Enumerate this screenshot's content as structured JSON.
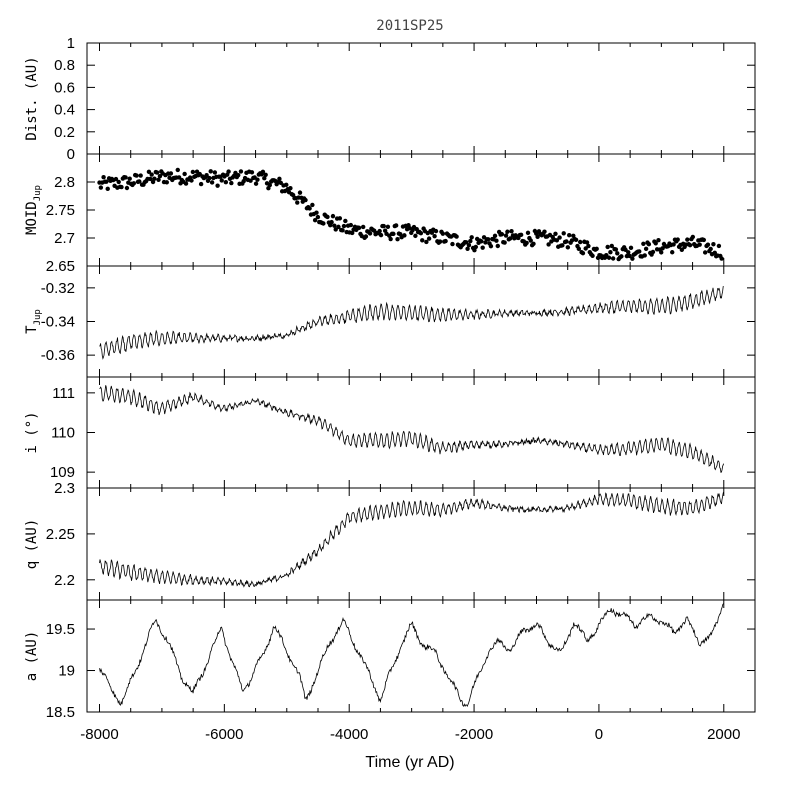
{
  "chart_data": {
    "type": "line",
    "title": "2011SP25",
    "xlabel": "Time (yr AD)",
    "xlim": [
      -8200,
      2500
    ],
    "x_ticks": [
      -8000,
      -6000,
      -4000,
      -2000,
      0,
      2000
    ],
    "x_tick_labels": [
      "-8000",
      "-6000",
      "-4000",
      "-2000",
      "0",
      "2000"
    ],
    "panels": [
      {
        "id": "dist",
        "type": "line",
        "ylabel": "Dist. (AU)",
        "ylabel_sub": "",
        "ylim": [
          0,
          1
        ],
        "y_ticks": [
          0,
          0.2,
          0.4,
          0.6,
          0.8,
          1
        ],
        "y_tick_labels": [
          "0",
          "0.2",
          "0.4",
          "0.6",
          "0.8",
          "1"
        ],
        "series": []
      },
      {
        "id": "moid",
        "type": "scatter",
        "ylabel": "MOID",
        "ylabel_sub": "Jup",
        "ylim": [
          2.65,
          2.85
        ],
        "y_ticks": [
          2.65,
          2.7,
          2.75,
          2.8
        ],
        "y_tick_labels": [
          "2.65",
          "2.7",
          "2.75",
          "2.8"
        ],
        "series": [
          {
            "x": [
              -8000,
              -7500,
              -7000,
              -6500,
              -6000,
              -5500,
              -5000,
              -4500,
              -4000,
              -3500,
              -3000,
              -2500,
              -2000,
              -1500,
              -1000,
              -500,
              0,
              500,
              1000,
              1500,
              2000
            ],
            "values": [
              2.795,
              2.8,
              2.81,
              2.81,
              2.805,
              2.81,
              2.79,
              2.74,
              2.715,
              2.71,
              2.71,
              2.7,
              2.69,
              2.7,
              2.7,
              2.695,
              2.675,
              2.675,
              2.685,
              2.69,
              2.675
            ]
          }
        ]
      },
      {
        "id": "tjup",
        "type": "line",
        "ylabel": "T",
        "ylabel_sub": "Jup",
        "ylim": [
          -0.373,
          -0.307
        ],
        "y_ticks": [
          -0.36,
          -0.34,
          -0.32
        ],
        "y_tick_labels": [
          "-0.36",
          "-0.34",
          "-0.32"
        ],
        "series": [
          {
            "x": [
              -8000,
              -7500,
              -7000,
              -6500,
              -6000,
              -5500,
              -5000,
              -4500,
              -4000,
              -3500,
              -3000,
              -2500,
              -2000,
              -1500,
              -1000,
              -500,
              0,
              500,
              1000,
              1500,
              2000
            ],
            "values": [
              -0.358,
              -0.352,
              -0.35,
              -0.35,
              -0.35,
              -0.35,
              -0.348,
              -0.34,
              -0.337,
              -0.334,
              -0.335,
              -0.336,
              -0.336,
              -0.335,
              -0.335,
              -0.334,
              -0.332,
              -0.331,
              -0.331,
              -0.328,
              -0.322
            ]
          }
        ]
      },
      {
        "id": "incl",
        "type": "line",
        "ylabel": "i (°)",
        "ylabel_sub": "",
        "ylim": [
          108.6,
          111.4
        ],
        "y_ticks": [
          109,
          110,
          111
        ],
        "y_tick_labels": [
          "109",
          "110",
          "111"
        ],
        "series": [
          {
            "x": [
              -8000,
              -7500,
              -7000,
              -6500,
              -6000,
              -5500,
              -5000,
              -4500,
              -4000,
              -3500,
              -3000,
              -2500,
              -2000,
              -1500,
              -1000,
              -500,
              0,
              500,
              1000,
              1500,
              2000
            ],
            "values": [
              111.0,
              110.9,
              110.6,
              110.9,
              110.6,
              110.8,
              110.5,
              110.3,
              109.8,
              109.8,
              109.85,
              109.6,
              109.7,
              109.7,
              109.8,
              109.7,
              109.55,
              109.6,
              109.7,
              109.5,
              109.1
            ]
          }
        ]
      },
      {
        "id": "q",
        "type": "line",
        "ylabel": "q (AU)",
        "ylabel_sub": "",
        "ylim": [
          2.178,
          2.3
        ],
        "y_ticks": [
          2.2,
          2.25,
          2.3
        ],
        "y_tick_labels": [
          "2.2",
          "2.25",
          "2.3"
        ],
        "series": [
          {
            "x": [
              -8000,
              -7500,
              -7000,
              -6500,
              -6000,
              -5500,
              -5000,
              -4500,
              -4000,
              -3500,
              -3000,
              -2500,
              -2000,
              -1500,
              -1000,
              -500,
              0,
              500,
              1000,
              1500,
              2000
            ],
            "values": [
              2.215,
              2.208,
              2.203,
              2.2,
              2.198,
              2.195,
              2.205,
              2.232,
              2.268,
              2.275,
              2.278,
              2.276,
              2.284,
              2.278,
              2.276,
              2.278,
              2.288,
              2.286,
              2.28,
              2.278,
              2.29
            ]
          }
        ]
      },
      {
        "id": "a",
        "type": "line",
        "ylabel": "a (AU)",
        "ylabel_sub": "",
        "ylim": [
          18.5,
          19.85
        ],
        "y_ticks": [
          18.5,
          19,
          19.5
        ],
        "y_tick_labels": [
          "18.5",
          "19",
          "19.5"
        ],
        "series": [
          {
            "x": [
              -8000,
              -7800,
              -7650,
              -7450,
              -7100,
              -6900,
              -6700,
              -6500,
              -6250,
              -6050,
              -5850,
              -5700,
              -5400,
              -5200,
              -5050,
              -4800,
              -4700,
              -4500,
              -4300,
              -4100,
              -3800,
              -3600,
              -3500,
              -3400,
              -3200,
              -3000,
              -2800,
              -2600,
              -2400,
              -2200,
              -2100,
              -2000,
              -1800,
              -1600,
              -1400,
              -1200,
              -1000,
              -800,
              -600,
              -400,
              -200,
              0,
              200,
              400,
              600,
              800,
              1000,
              1200,
              1400,
              1600,
              1800,
              1900,
              2000
            ],
            "values": [
              19.05,
              18.75,
              18.62,
              18.95,
              19.62,
              19.35,
              18.95,
              18.72,
              19.15,
              19.52,
              19.05,
              18.75,
              19.15,
              19.55,
              19.3,
              18.95,
              18.62,
              19.0,
              19.35,
              19.6,
              19.15,
              18.82,
              18.65,
              18.85,
              19.25,
              19.55,
              19.3,
              19.2,
              18.9,
              18.65,
              18.6,
              18.8,
              19.2,
              19.35,
              19.25,
              19.5,
              19.55,
              19.35,
              19.2,
              19.6,
              19.35,
              19.55,
              19.75,
              19.65,
              19.55,
              19.65,
              19.6,
              19.45,
              19.62,
              19.35,
              19.4,
              19.6,
              19.85
            ]
          }
        ]
      }
    ]
  }
}
